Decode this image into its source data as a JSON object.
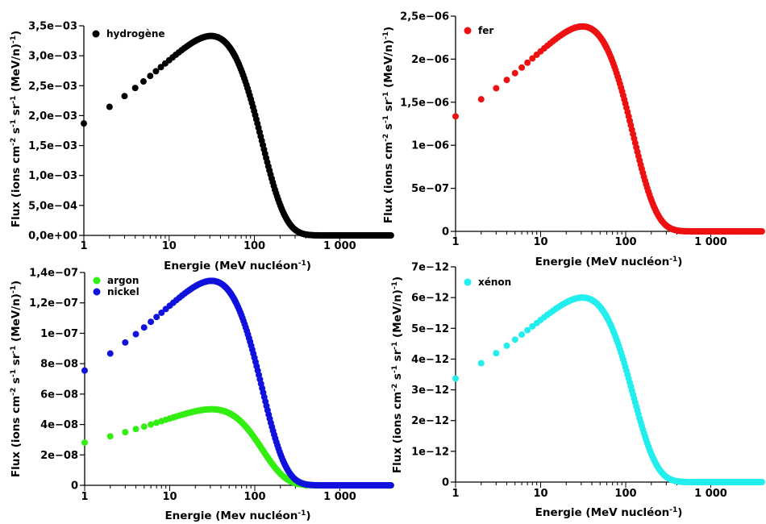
{
  "chart_data": [
    {
      "type": "scatter",
      "xscale": "log",
      "xlim": [
        1,
        4000
      ],
      "ylim": [
        0,
        0.0035
      ],
      "x_ticks": [
        1,
        10,
        100,
        1000
      ],
      "x_tick_labels": [
        "1",
        "10",
        "100",
        "1 000"
      ],
      "y_ticks": [
        0,
        0.0005,
        0.001,
        0.0015,
        0.002,
        0.0025,
        0.003,
        0.0035
      ],
      "y_tick_labels": [
        "0,0e+00",
        "5,0e−04",
        "1,0e−03",
        "1,5e−03",
        "2,0e−03",
        "2,5e−03",
        "3,0e−03",
        "3,5e−03"
      ],
      "xlabel": "Energie (MeV nucléon",
      "xlabel_sup": "-1",
      "xlabel_end": ")",
      "ylabel": "Flux (ions cm",
      "legend_position": "top-left",
      "series": [
        {
          "name": "hydrogène",
          "color": "#000000",
          "peak": 0.00333
        }
      ]
    },
    {
      "type": "scatter",
      "xscale": "log",
      "xlim": [
        1,
        4000
      ],
      "ylim": [
        0,
        2.5e-06
      ],
      "x_ticks": [
        1,
        10,
        100,
        1000
      ],
      "x_tick_labels": [
        "1",
        "10",
        "100",
        "1 000"
      ],
      "y_ticks": [
        0,
        5e-07,
        1e-06,
        1.5e-06,
        2e-06,
        2.5e-06
      ],
      "y_tick_labels": [
        "0",
        "5e−07",
        "1e−06",
        "1,5e−06",
        "2e−06",
        "2,5e−06"
      ],
      "xlabel": "Energie (MeV nucléon",
      "xlabel_sup": "-1",
      "xlabel_end": ")",
      "ylabel": "Flux (ions cm",
      "legend_position": "top-left",
      "series": [
        {
          "name": "fer",
          "color": "#ee1111",
          "peak": 2.38e-06
        }
      ]
    },
    {
      "type": "scatter",
      "xscale": "log",
      "xlim": [
        1,
        4000
      ],
      "ylim": [
        0,
        1.4e-07
      ],
      "x_ticks": [
        1,
        10,
        100,
        1000
      ],
      "x_tick_labels": [
        "1",
        "10",
        "100",
        "1 000"
      ],
      "y_ticks": [
        0,
        2e-08,
        4e-08,
        6e-08,
        8e-08,
        1e-07,
        1.2e-07,
        1.4e-07
      ],
      "y_tick_labels": [
        "0",
        "2e−08",
        "4e−08",
        "6e−08",
        "8e−08",
        "1e−07",
        "1,2e−07",
        "1,4e−07"
      ],
      "xlabel": "Energie (Mev nucléon",
      "xlabel_sup": "-1",
      "xlabel_end": ")",
      "ylabel": "Flux (ions cm",
      "legend_position": "top-left",
      "series": [
        {
          "name": "argon",
          "color": "#33ee11",
          "peak": 5e-08
        },
        {
          "name": "nickel",
          "color": "#1111dd",
          "peak": 1.345e-07
        }
      ]
    },
    {
      "type": "scatter",
      "xscale": "log",
      "xlim": [
        1,
        4000
      ],
      "ylim": [
        0,
        7e-12
      ],
      "x_ticks": [
        1,
        10,
        100,
        1000
      ],
      "x_tick_labels": [
        "1",
        "10",
        "100",
        "1 000"
      ],
      "y_ticks": [
        0,
        1e-12,
        2e-12,
        3e-12,
        4e-12,
        5e-12,
        6e-12,
        7e-12
      ],
      "y_tick_labels": [
        "0",
        "1e−12",
        "2e−12",
        "3e−12",
        "4e−12",
        "5e−12",
        "6e−12",
        "7e−12"
      ],
      "xlabel": "Energie (MeV nucléon",
      "xlabel_sup": "-1",
      "xlabel_end": ")",
      "ylabel": "Flux (ions cm",
      "legend_position": "top-left",
      "series": [
        {
          "name": "xénon",
          "color": "#22eeee",
          "peak": 6e-12
        }
      ]
    }
  ]
}
